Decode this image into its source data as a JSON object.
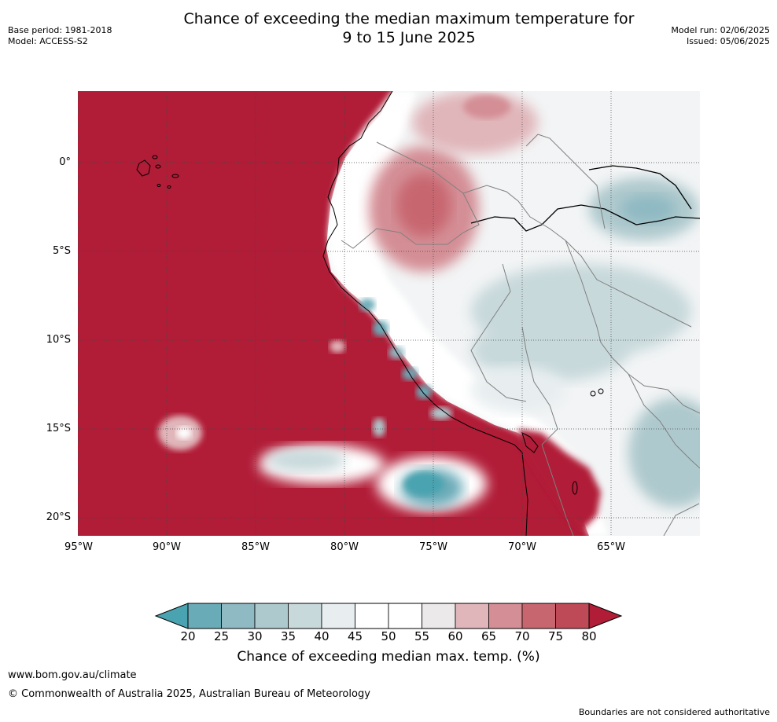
{
  "title_line1": "Chance of exceeding the median maximum temperature for",
  "title_line2": "9 to 15 June 2025",
  "meta_left": {
    "base_period": "Base period: 1981-2018",
    "model": "Model: ACCESS-S2"
  },
  "meta_right": {
    "model_run": "Model run: 02/06/2025",
    "issued": "Issued: 05/06/2025"
  },
  "lat_labels": [
    "0°",
    "5°S",
    "10°S",
    "15°S",
    "20°S"
  ],
  "lon_labels": [
    "95°W",
    "90°W",
    "85°W",
    "80°W",
    "75°W",
    "70°W",
    "65°W"
  ],
  "colorbar": {
    "ticks": [
      "20",
      "25",
      "30",
      "35",
      "40",
      "45",
      "50",
      "55",
      "60",
      "65",
      "70",
      "75",
      "80"
    ],
    "colors": [
      "#4aa3b0",
      "#6aabb8",
      "#8fb9c3",
      "#aec9cd",
      "#c8d9dc",
      "#e8eef0",
      "#ffffff",
      "#ffffff",
      "#ece9ea",
      "#e0b6ba",
      "#d48e95",
      "#c86670",
      "#bf4a57",
      "#b11c37"
    ],
    "title": "Chance of exceeding median max. temp. (%)"
  },
  "footer": {
    "url": "www.bom.gov.au/climate",
    "copyright": "© Commonwealth of Australia 2025, Australian Bureau of Meteorology",
    "disclaimer": "Boundaries are not considered authoritative"
  }
}
